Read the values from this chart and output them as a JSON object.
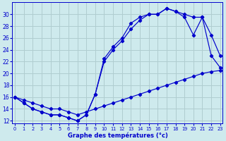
{
  "xlabel": "Graphe des températures (°c)",
  "bg_color": "#ceeaed",
  "line_color": "#0000cc",
  "grid_color": "#b0cdd0",
  "ylim": [
    11.5,
    32
  ],
  "xlim": [
    -0.3,
    23.3
  ],
  "yticks": [
    12,
    14,
    16,
    18,
    20,
    22,
    24,
    26,
    28,
    30
  ],
  "xticks": [
    0,
    1,
    2,
    3,
    4,
    5,
    6,
    7,
    8,
    9,
    10,
    11,
    12,
    13,
    14,
    15,
    16,
    17,
    18,
    19,
    20,
    21,
    22,
    23
  ],
  "s1_x": [
    0,
    1,
    2,
    3,
    4,
    5,
    6,
    7,
    8,
    9,
    10,
    11,
    12,
    13,
    14,
    15,
    16,
    17,
    18,
    19,
    20,
    21,
    22,
    23
  ],
  "s1_y": [
    16.0,
    15.0,
    14.0,
    13.5,
    13.0,
    13.0,
    12.5,
    12.0,
    13.0,
    16.5,
    22.5,
    24.5,
    26.0,
    28.5,
    29.5,
    30.0,
    30.0,
    31.0,
    30.5,
    29.5,
    26.5,
    29.5,
    23.0,
    21.0
  ],
  "s2_x": [
    0,
    1,
    2,
    3,
    4,
    5,
    6,
    7,
    8,
    9,
    10,
    11,
    12,
    13,
    14,
    15,
    16,
    17,
    18,
    19,
    20,
    21,
    22,
    23
  ],
  "s2_y": [
    16.0,
    15.0,
    14.0,
    13.5,
    13.0,
    13.0,
    12.5,
    12.0,
    13.0,
    16.5,
    22.0,
    24.0,
    25.5,
    27.5,
    29.0,
    30.0,
    30.0,
    31.0,
    30.5,
    30.0,
    29.5,
    29.5,
    26.5,
    23.0
  ],
  "s3_x": [
    0,
    1,
    2,
    3,
    4,
    5,
    6,
    7,
    8,
    9,
    10,
    11,
    12,
    13,
    14,
    15,
    16,
    17,
    18,
    19,
    20,
    21,
    22,
    23
  ],
  "s3_y": [
    16.0,
    15.5,
    15.0,
    14.5,
    14.0,
    14.0,
    13.5,
    13.0,
    13.5,
    14.0,
    14.5,
    15.0,
    15.5,
    16.0,
    16.5,
    17.0,
    17.5,
    18.0,
    18.5,
    19.0,
    19.5,
    20.0,
    20.3,
    20.5
  ]
}
